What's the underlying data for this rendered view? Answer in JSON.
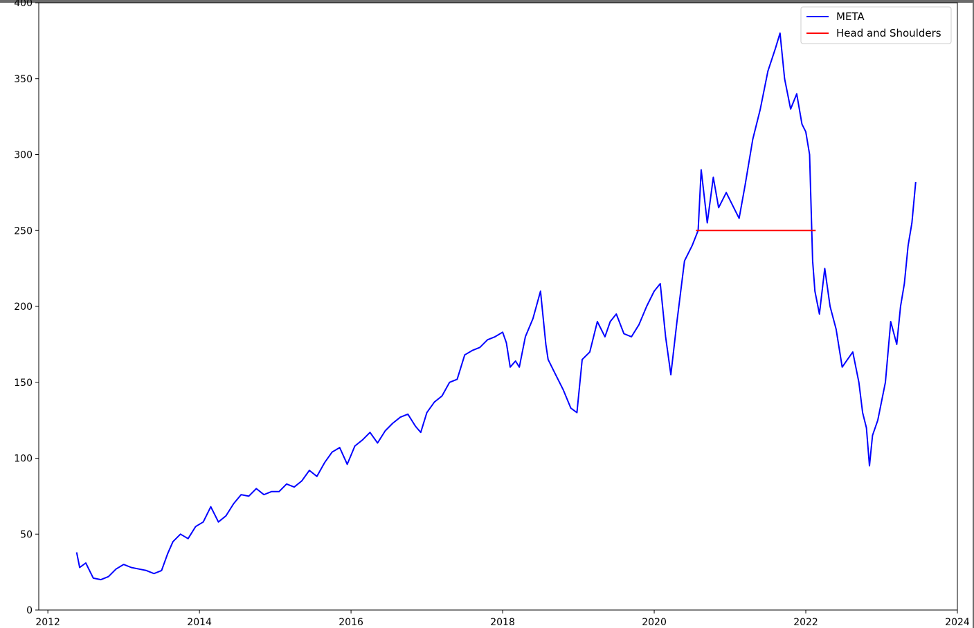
{
  "chart_data": {
    "type": "line",
    "title": "",
    "xlabel": "",
    "ylabel": "",
    "xlim": [
      2011.88,
      2024.0
    ],
    "ylim": [
      0,
      400
    ],
    "x_ticks": [
      2012,
      2014,
      2016,
      2018,
      2020,
      2022,
      2024
    ],
    "x_tick_labels": [
      "2012",
      "2014",
      "2016",
      "2018",
      "2020",
      "2022",
      "2024"
    ],
    "y_ticks": [
      0,
      50,
      100,
      150,
      200,
      250,
      300,
      350,
      400
    ],
    "y_tick_labels": [
      "0",
      "50",
      "100",
      "150",
      "200",
      "250",
      "300",
      "350",
      "400"
    ],
    "grid": false,
    "legend_position": "top-right",
    "series": [
      {
        "name": "META",
        "color": "#0000ff",
        "x": [
          2012.38,
          2012.42,
          2012.5,
          2012.6,
          2012.7,
          2012.8,
          2012.9,
          2013.0,
          2013.1,
          2013.2,
          2013.3,
          2013.4,
          2013.5,
          2013.58,
          2013.65,
          2013.75,
          2013.85,
          2013.95,
          2014.05,
          2014.15,
          2014.25,
          2014.35,
          2014.45,
          2014.55,
          2014.65,
          2014.75,
          2014.85,
          2014.95,
          2015.05,
          2015.15,
          2015.25,
          2015.35,
          2015.45,
          2015.55,
          2015.65,
          2015.75,
          2015.85,
          2015.95,
          2016.05,
          2016.15,
          2016.25,
          2016.35,
          2016.45,
          2016.55,
          2016.65,
          2016.75,
          2016.85,
          2016.92,
          2017.0,
          2017.1,
          2017.2,
          2017.3,
          2017.4,
          2017.5,
          2017.6,
          2017.7,
          2017.8,
          2017.9,
          2018.0,
          2018.05,
          2018.1,
          2018.17,
          2018.22,
          2018.3,
          2018.4,
          2018.5,
          2018.57,
          2018.6,
          2018.7,
          2018.8,
          2018.9,
          2018.98,
          2019.05,
          2019.15,
          2019.25,
          2019.35,
          2019.42,
          2019.5,
          2019.6,
          2019.7,
          2019.8,
          2019.9,
          2020.0,
          2020.08,
          2020.15,
          2020.22,
          2020.3,
          2020.4,
          2020.5,
          2020.58,
          2020.62,
          2020.7,
          2020.78,
          2020.85,
          2020.95,
          2021.05,
          2021.12,
          2021.2,
          2021.3,
          2021.4,
          2021.5,
          2021.6,
          2021.66,
          2021.72,
          2021.8,
          2021.88,
          2021.95,
          2022.0,
          2022.05,
          2022.09,
          2022.12,
          2022.18,
          2022.25,
          2022.32,
          2022.4,
          2022.48,
          2022.55,
          2022.62,
          2022.7,
          2022.75,
          2022.8,
          2022.84,
          2022.88,
          2022.95,
          2023.05,
          2023.12,
          2023.2,
          2023.25,
          2023.3,
          2023.35,
          2023.4,
          2023.45
        ],
        "y": [
          38,
          28,
          31,
          21,
          20,
          22,
          27,
          30,
          28,
          27,
          26,
          24,
          26,
          37,
          45,
          50,
          47,
          55,
          58,
          68,
          58,
          62,
          70,
          76,
          75,
          80,
          76,
          78,
          78,
          83,
          81,
          85,
          92,
          88,
          97,
          104,
          107,
          96,
          108,
          112,
          117,
          110,
          118,
          123,
          127,
          129,
          121,
          117,
          130,
          137,
          141,
          150,
          152,
          168,
          171,
          173,
          178,
          180,
          183,
          176,
          160,
          164,
          160,
          180,
          192,
          210,
          175,
          165,
          155,
          145,
          133,
          130,
          165,
          170,
          190,
          180,
          190,
          195,
          182,
          180,
          188,
          200,
          210,
          215,
          180,
          155,
          190,
          230,
          240,
          250,
          290,
          255,
          285,
          265,
          275,
          265,
          258,
          280,
          310,
          330,
          355,
          370,
          380,
          350,
          330,
          340,
          320,
          315,
          300,
          230,
          210,
          195,
          225,
          200,
          185,
          160,
          165,
          170,
          150,
          130,
          120,
          95,
          115,
          125,
          150,
          190,
          175,
          200,
          215,
          240,
          255,
          282
        ]
      },
      {
        "name": "Head and Shoulders",
        "color": "#ff0000",
        "x": [
          2020.55,
          2022.13
        ],
        "y": [
          250,
          250
        ]
      }
    ]
  }
}
